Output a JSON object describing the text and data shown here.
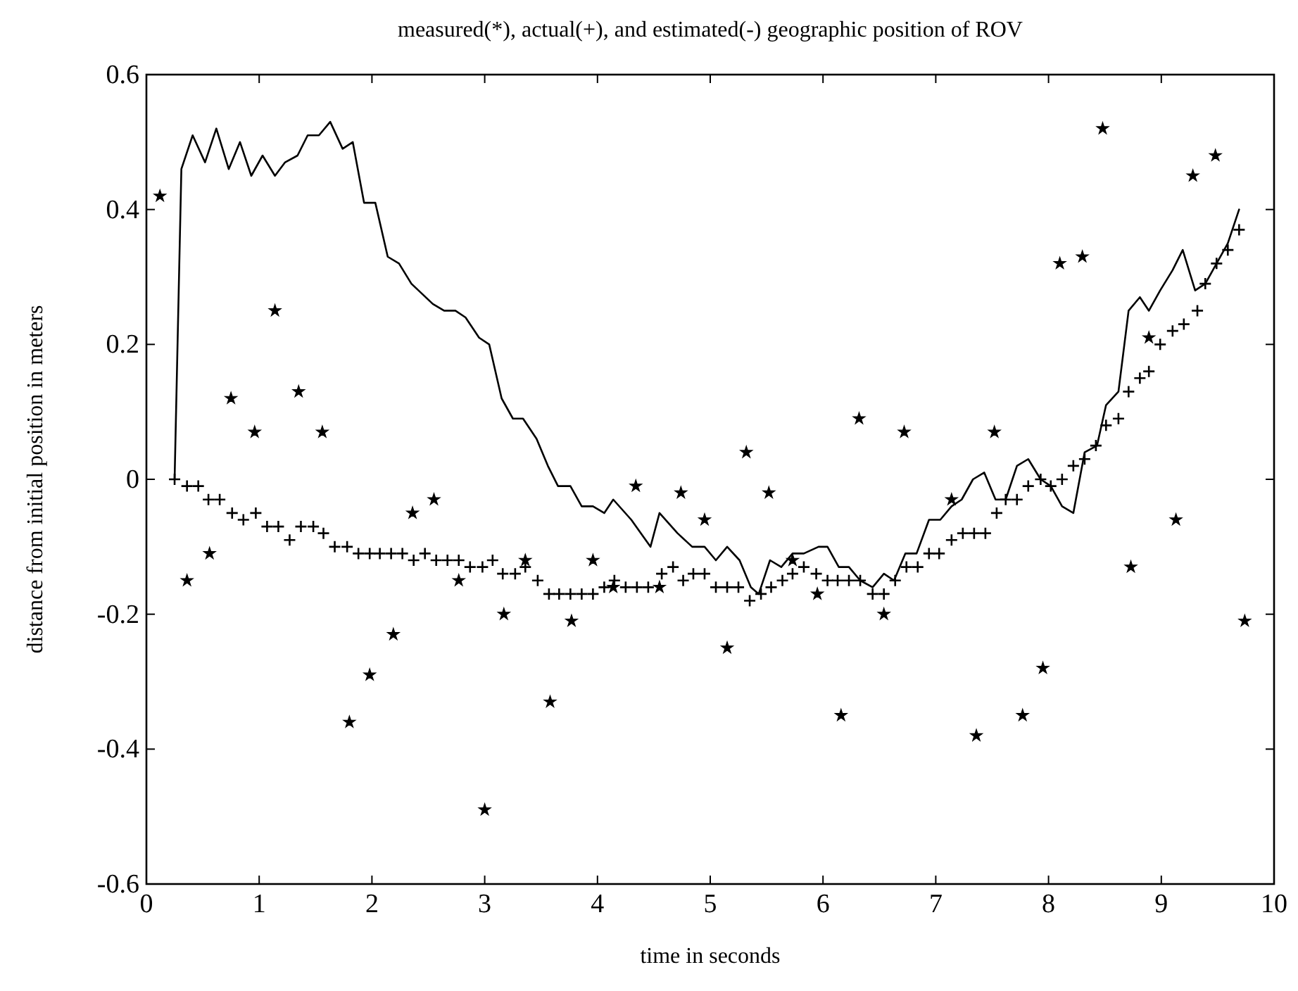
{
  "chart_data": {
    "type": "line",
    "title": "measured(*), actual(+), and estimated(-) geographic position of ROV",
    "xlabel": "time in seconds",
    "ylabel": "distance from initial position in meters",
    "xlim": [
      0,
      10
    ],
    "ylim": [
      -0.6,
      0.6
    ],
    "xticks": [
      0,
      1,
      2,
      3,
      4,
      5,
      6,
      7,
      8,
      9,
      10
    ],
    "yticks": [
      -0.6,
      -0.4,
      -0.2,
      0,
      0.2,
      0.4,
      0.6
    ],
    "grid": false,
    "series": [
      {
        "type": "scatter",
        "marker": "star",
        "color": "#000000",
        "x": [
          0.12,
          0.36,
          0.56,
          0.75,
          0.96,
          1.14,
          1.35,
          1.56,
          1.8,
          1.98,
          2.19,
          2.36,
          2.55,
          2.77,
          3.0,
          3.17,
          3.36,
          3.58,
          3.77,
          3.96,
          4.14,
          4.34,
          4.55,
          4.74,
          4.95,
          5.15,
          5.32,
          5.52,
          5.73,
          5.95,
          6.16,
          6.32,
          6.54,
          6.72,
          7.14,
          7.36,
          7.52,
          7.77,
          7.95,
          8.1,
          8.3,
          8.48,
          8.73,
          8.89,
          9.13,
          9.28,
          9.48,
          9.74
        ],
        "values": [
          0.42,
          -0.15,
          -0.11,
          0.12,
          0.07,
          0.25,
          0.13,
          0.07,
          -0.36,
          -0.29,
          -0.23,
          -0.05,
          -0.03,
          -0.15,
          -0.49,
          -0.2,
          -0.12,
          -0.33,
          -0.21,
          -0.12,
          -0.16,
          -0.01,
          -0.16,
          -0.02,
          -0.06,
          -0.25,
          0.04,
          -0.02,
          -0.12,
          -0.17,
          -0.35,
          0.09,
          -0.2,
          0.07,
          -0.03,
          -0.38,
          0.07,
          -0.35,
          -0.28,
          0.32,
          0.33,
          0.52,
          -0.13,
          0.21,
          -0.06,
          0.45,
          0.48,
          -0.21
        ]
      },
      {
        "type": "scatter",
        "marker": "cross",
        "color": "#000000",
        "x": [
          0.25,
          0.36,
          0.46,
          0.55,
          0.65,
          0.76,
          0.86,
          0.97,
          1.07,
          1.17,
          1.27,
          1.37,
          1.48,
          1.57,
          1.67,
          1.78,
          1.88,
          1.98,
          2.07,
          2.17,
          2.27,
          2.37,
          2.47,
          2.57,
          2.67,
          2.77,
          2.87,
          2.98,
          3.07,
          3.16,
          3.27,
          3.36,
          3.47,
          3.57,
          3.66,
          3.76,
          3.86,
          3.96,
          4.06,
          4.15,
          4.25,
          4.35,
          4.45,
          4.57,
          4.67,
          4.76,
          4.85,
          4.95,
          5.05,
          5.15,
          5.25,
          5.35,
          5.45,
          5.54,
          5.64,
          5.73,
          5.83,
          5.94,
          6.04,
          6.13,
          6.23,
          6.33,
          6.44,
          6.54,
          6.64,
          6.74,
          6.84,
          6.94,
          7.03,
          7.14,
          7.24,
          7.34,
          7.44,
          7.54,
          7.62,
          7.72,
          7.82,
          7.93,
          8.02,
          8.12,
          8.22,
          8.32,
          8.42,
          8.51,
          8.62,
          8.71,
          8.81,
          8.89,
          8.99,
          9.1,
          9.2,
          9.32,
          9.39,
          9.49,
          9.59,
          9.69
        ],
        "values": [
          0.0,
          -0.01,
          -0.01,
          -0.03,
          -0.03,
          -0.05,
          -0.06,
          -0.05,
          -0.07,
          -0.07,
          -0.09,
          -0.07,
          -0.07,
          -0.08,
          -0.1,
          -0.1,
          -0.11,
          -0.11,
          -0.11,
          -0.11,
          -0.11,
          -0.12,
          -0.11,
          -0.12,
          -0.12,
          -0.12,
          -0.13,
          -0.13,
          -0.12,
          -0.14,
          -0.14,
          -0.13,
          -0.15,
          -0.17,
          -0.17,
          -0.17,
          -0.17,
          -0.17,
          -0.16,
          -0.15,
          -0.16,
          -0.16,
          -0.16,
          -0.14,
          -0.13,
          -0.15,
          -0.14,
          -0.14,
          -0.16,
          -0.16,
          -0.16,
          -0.18,
          -0.17,
          -0.16,
          -0.15,
          -0.14,
          -0.13,
          -0.14,
          -0.15,
          -0.15,
          -0.15,
          -0.15,
          -0.17,
          -0.17,
          -0.15,
          -0.13,
          -0.13,
          -0.11,
          -0.11,
          -0.09,
          -0.08,
          -0.08,
          -0.08,
          -0.05,
          -0.03,
          -0.03,
          -0.01,
          0.0,
          -0.01,
          0.0,
          0.02,
          0.03,
          0.05,
          0.08,
          0.09,
          0.13,
          0.15,
          0.16,
          0.2,
          0.22,
          0.23,
          0.25,
          0.29,
          0.32,
          0.34,
          0.37
        ]
      },
      {
        "marker": "none",
        "line_style": "solid",
        "color": "#000000",
        "x": [
          0.25,
          0.31,
          0.41,
          0.52,
          0.62,
          0.73,
          0.83,
          0.93,
          1.03,
          1.14,
          1.23,
          1.34,
          1.43,
          1.53,
          1.63,
          1.74,
          1.83,
          1.93,
          2.03,
          2.14,
          2.24,
          2.35,
          2.54,
          2.64,
          2.74,
          2.83,
          2.95,
          3.04,
          3.15,
          3.25,
          3.34,
          3.46,
          3.56,
          3.65,
          3.76,
          3.86,
          3.96,
          4.06,
          4.14,
          4.3,
          4.47,
          4.55,
          4.71,
          4.84,
          4.95,
          5.05,
          5.15,
          5.26,
          5.36,
          5.43,
          5.53,
          5.63,
          5.73,
          5.83,
          5.96,
          6.04,
          6.14,
          6.23,
          6.33,
          6.44,
          6.54,
          6.63,
          6.73,
          6.83,
          6.94,
          7.04,
          7.14,
          7.23,
          7.33,
          7.43,
          7.53,
          7.62,
          7.72,
          7.82,
          7.93,
          8.02,
          8.12,
          8.22,
          8.32,
          8.43,
          8.51,
          8.62,
          8.71,
          8.81,
          8.89,
          8.99,
          9.1,
          9.19,
          9.3,
          9.39,
          9.49,
          9.59,
          9.69
        ],
        "values": [
          0.0,
          0.46,
          0.51,
          0.47,
          0.52,
          0.46,
          0.5,
          0.45,
          0.48,
          0.45,
          0.47,
          0.48,
          0.51,
          0.51,
          0.53,
          0.49,
          0.5,
          0.41,
          0.41,
          0.33,
          0.32,
          0.29,
          0.26,
          0.25,
          0.25,
          0.24,
          0.21,
          0.2,
          0.12,
          0.09,
          0.09,
          0.06,
          0.02,
          -0.01,
          -0.01,
          -0.04,
          -0.04,
          -0.05,
          -0.03,
          -0.06,
          -0.1,
          -0.05,
          -0.08,
          -0.1,
          -0.1,
          -0.12,
          -0.1,
          -0.12,
          -0.16,
          -0.17,
          -0.12,
          -0.13,
          -0.11,
          -0.11,
          -0.1,
          -0.1,
          -0.13,
          -0.13,
          -0.15,
          -0.16,
          -0.14,
          -0.15,
          -0.11,
          -0.11,
          -0.06,
          -0.06,
          -0.04,
          -0.03,
          0.0,
          0.01,
          -0.03,
          -0.03,
          0.02,
          0.03,
          0.0,
          -0.01,
          -0.04,
          -0.05,
          0.04,
          0.05,
          0.11,
          0.13,
          0.25,
          0.27,
          0.25,
          0.28,
          0.31,
          0.34,
          0.28,
          0.29,
          0.32,
          0.35,
          0.4
        ]
      }
    ]
  }
}
